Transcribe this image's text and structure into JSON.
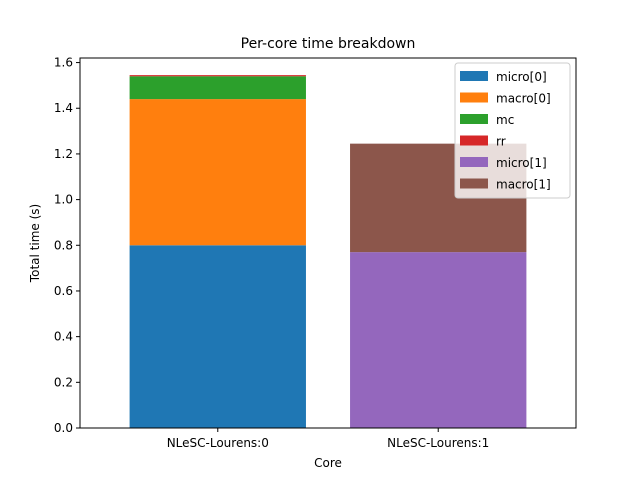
{
  "chart_data": {
    "type": "bar",
    "stacked": true,
    "title": "Per-core time breakdown",
    "xlabel": "Core",
    "ylabel": "Total time (s)",
    "categories": [
      "NLeSC-Lourens:0",
      "NLeSC-Lourens:1"
    ],
    "ylim": [
      0,
      1.62
    ],
    "yticks": [
      0.0,
      0.2,
      0.4,
      0.6,
      0.8,
      1.0,
      1.2,
      1.4,
      1.6
    ],
    "ytick_labels": [
      "0.0",
      "0.2",
      "0.4",
      "0.6",
      "0.8",
      "1.0",
      "1.2",
      "1.4",
      "1.6"
    ],
    "grid": false,
    "legend_position": "top-right",
    "series": [
      {
        "name": "micro[0]",
        "color": "#1f77b4",
        "values": [
          0.8,
          0.0
        ]
      },
      {
        "name": "macro[0]",
        "color": "#ff7f0e",
        "values": [
          0.64,
          0.0
        ]
      },
      {
        "name": "mc",
        "color": "#2ca02c",
        "values": [
          0.1,
          0.0
        ]
      },
      {
        "name": "rr",
        "color": "#d62728",
        "values": [
          0.005,
          0.0
        ]
      },
      {
        "name": "micro[1]",
        "color": "#9467bd",
        "values": [
          0.0,
          0.77
        ]
      },
      {
        "name": "macro[1]",
        "color": "#8c564b",
        "values": [
          0.0,
          0.475
        ]
      }
    ]
  }
}
